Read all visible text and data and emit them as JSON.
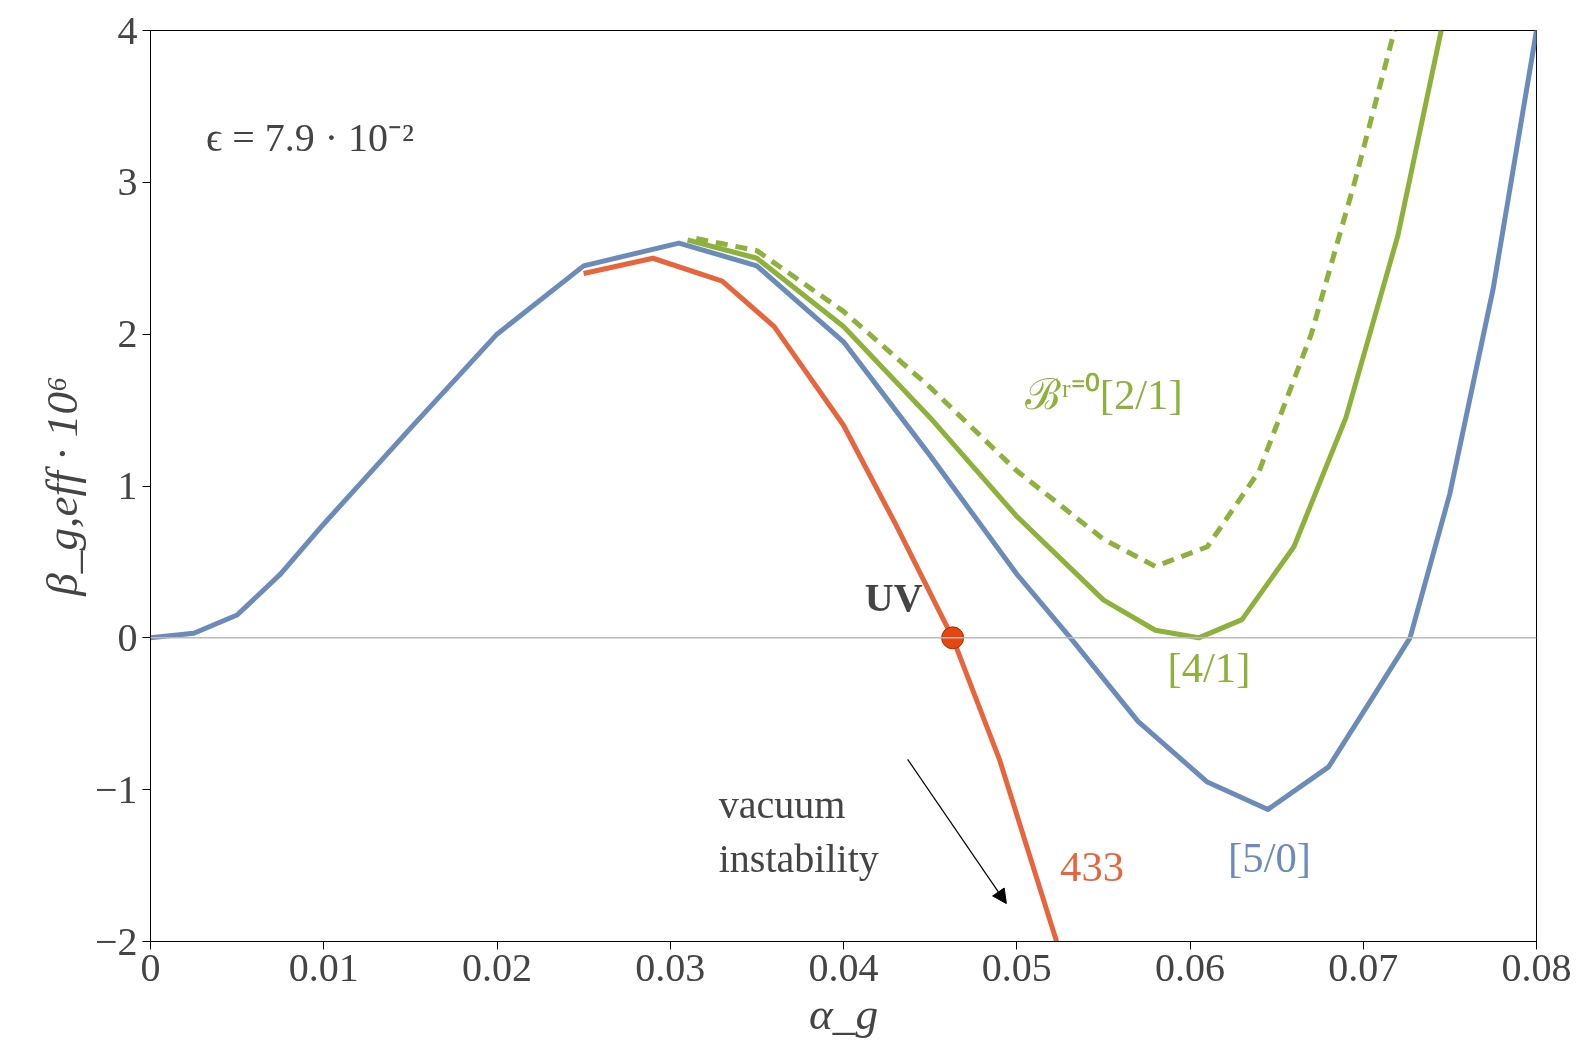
{
  "chart_data": {
    "type": "line",
    "xlabel": "α_g",
    "ylabel": "β_g,eff · 10⁶",
    "xlim": [
      0,
      0.08
    ],
    "ylim": [
      -2,
      4
    ],
    "xticks": [
      0,
      0.01,
      0.02,
      0.03,
      0.04,
      0.05,
      0.06,
      0.07,
      0.08
    ],
    "yticks": [
      {
        "value": -2,
        "label": "−2"
      },
      {
        "value": -1,
        "label": "−1"
      },
      0,
      1,
      2,
      3,
      4
    ],
    "grid": false,
    "line_style": "solid",
    "ref_lines": [
      {
        "axis": "y",
        "value": 0,
        "color": "#bbbbbb"
      }
    ],
    "annotations": [
      "ϵ = 7.9 · 10⁻²",
      {
        "text": "UV",
        "x": 0.0463,
        "y": 0
      },
      "vacuum instability"
    ],
    "series": [
      {
        "name": "433",
        "color": "#e8643c",
        "x": [
          0.025,
          0.029,
          0.033,
          0.036,
          0.04,
          0.043,
          0.0463,
          0.049,
          0.0523
        ],
        "values": [
          2.4,
          2.5,
          2.35,
          2.05,
          1.4,
          0.75,
          0,
          -0.8,
          -2
        ]
      },
      {
        "name": "[5/0]",
        "color": "#6b8cba",
        "x": [
          0,
          0.0025,
          0.005,
          0.0075,
          0.01,
          0.015,
          0.02,
          0.025,
          0.0305,
          0.035,
          0.04,
          0.045,
          0.05,
          0.0531,
          0.057,
          0.061,
          0.0645,
          0.068,
          0.0705,
          0.0727,
          0.075,
          0.0775,
          0.08
        ],
        "values": [
          0,
          0.03,
          0.15,
          0.42,
          0.75,
          1.38,
          2.0,
          2.45,
          2.6,
          2.45,
          1.95,
          1.2,
          0.42,
          0,
          -0.55,
          -0.95,
          -1.13,
          -0.85,
          -0.4,
          0,
          0.95,
          2.3,
          4
        ]
      },
      {
        "name": "[4/1]",
        "color": "#8db13a",
        "x": [
          0.031,
          0.035,
          0.04,
          0.045,
          0.05,
          0.055,
          0.058,
          0.0605,
          0.063,
          0.066,
          0.069,
          0.072,
          0.0745
        ],
        "values": [
          2.62,
          2.5,
          2.05,
          1.45,
          0.8,
          0.25,
          0.05,
          0,
          0.12,
          0.6,
          1.45,
          2.65,
          4
        ]
      },
      {
        "name": "ℬʳ⁼⁰[2/1]",
        "color": "#8db13a",
        "line_style": "dashed",
        "x": [
          0.0315,
          0.035,
          0.04,
          0.045,
          0.05,
          0.055,
          0.058,
          0.061,
          0.064,
          0.067,
          0.0695,
          0.0718
        ],
        "values": [
          2.63,
          2.55,
          2.15,
          1.65,
          1.1,
          0.65,
          0.47,
          0.6,
          1.1,
          2.0,
          3.0,
          4
        ]
      },
      {
        "type": "scatter",
        "marker": "circle",
        "color": "#e8450f",
        "x": [
          0.0463
        ],
        "values": [
          0
        ]
      }
    ]
  }
}
